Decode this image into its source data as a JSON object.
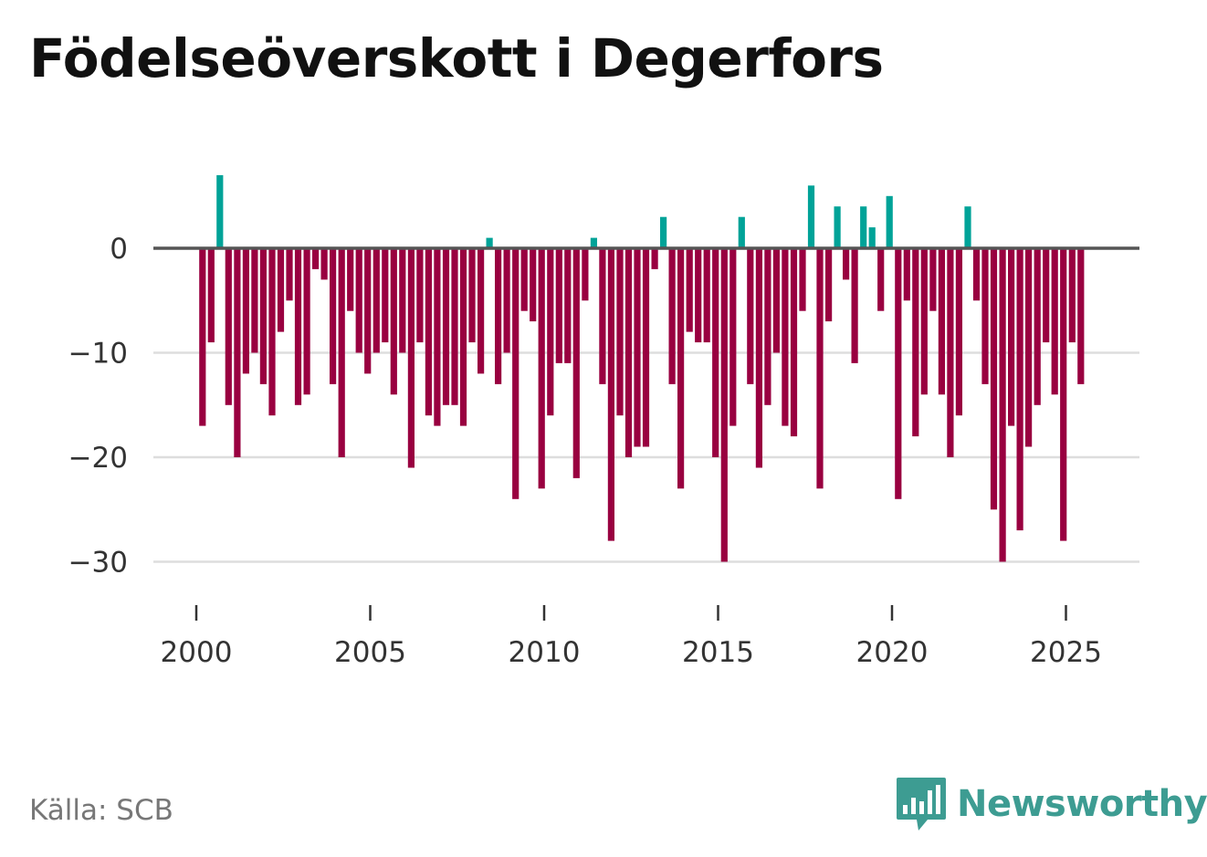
{
  "title": "Födelseöverskott i Degerfors",
  "source": "Källa: SCB",
  "logo": {
    "text": "Newsworthy",
    "icon": "bar-chart-speech-bubble-icon"
  },
  "colors": {
    "positive": "#00a398",
    "negative": "#990040",
    "zero_line": "#555555",
    "grid": "#dddddd",
    "logo": "#3d9c92"
  },
  "chart_data": {
    "type": "bar",
    "title": "Födelseöverskott i Degerfors",
    "xlabel": "",
    "ylabel": "",
    "ylim": [
      -35,
      10
    ],
    "y_ticks": [
      0,
      -10,
      -20,
      -30
    ],
    "y_tick_labels": [
      "0",
      "−10",
      "−20",
      "−30"
    ],
    "x_ticks": [
      2000,
      2005,
      2010,
      2015,
      2020,
      2025
    ],
    "x_tick_labels": [
      "2000",
      "2005",
      "2010",
      "2015",
      "2020",
      "2025"
    ],
    "period": "quarterly",
    "start": 2000.0,
    "series": [
      {
        "name": "Födelseöverskott",
        "values": [
          -17,
          -9,
          7,
          -15,
          -20,
          -12,
          -10,
          -13,
          -16,
          -8,
          -5,
          -15,
          -14,
          -2,
          -3,
          -13,
          -20,
          -6,
          -10,
          -12,
          -10,
          -9,
          -14,
          -10,
          -21,
          -9,
          -16,
          -17,
          -15,
          -15,
          -17,
          -9,
          -12,
          1,
          -13,
          -10,
          -24,
          -6,
          -7,
          -23,
          -16,
          -11,
          -11,
          -22,
          -5,
          1,
          -13,
          -28,
          -16,
          -20,
          -19,
          -19,
          -2,
          3,
          -13,
          -23,
          -8,
          -9,
          -9,
          -20,
          -30,
          -17,
          3,
          -13,
          -21,
          -15,
          -10,
          -17,
          -18,
          -6,
          6,
          -23,
          -7,
          4,
          -3,
          -11,
          4,
          2,
          -6,
          5,
          -24,
          -5,
          -18,
          -14,
          -6,
          -14,
          -20,
          -16,
          4,
          -5,
          -13,
          -25,
          -30,
          -17,
          -27,
          -19,
          -15,
          -9,
          -14,
          -28,
          -9,
          -13
        ]
      }
    ]
  }
}
